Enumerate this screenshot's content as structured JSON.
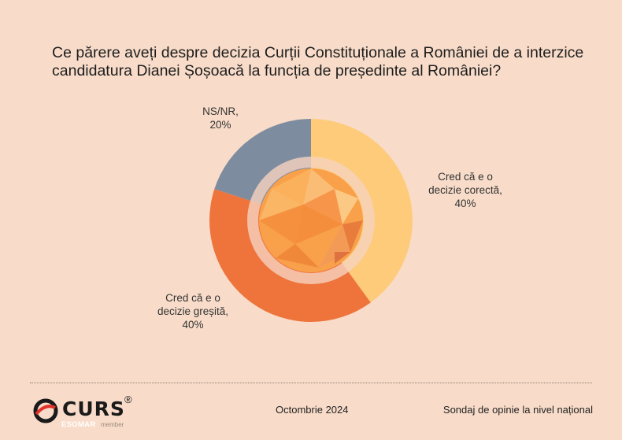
{
  "chart_data": {
    "type": "pie",
    "title": "Ce părere aveți despre decizia Curții Constituționale a României de a interzice candidatura Dianei Șoșoacă la funcția de președinte al României?",
    "slices": [
      {
        "label_lines": [
          "Cred că e o",
          "decizie corectă,",
          "40%"
        ],
        "value": 40,
        "color": "#fecb7a"
      },
      {
        "label_lines": [
          "Cred că e o",
          "decizie greșită,",
          "40%"
        ],
        "value": 40,
        "color": "#ee743c"
      },
      {
        "label_lines": [
          "NS/NR,",
          "20%"
        ],
        "value": 20,
        "color": "#7e8c9f"
      }
    ]
  },
  "footer": {
    "date": "Octombrie 2024",
    "survey": "Sondaj de opinie la nivel național"
  },
  "logo": {
    "name": "CURS",
    "reg": "®",
    "esomar": "ESOMAR",
    "member": "member"
  }
}
